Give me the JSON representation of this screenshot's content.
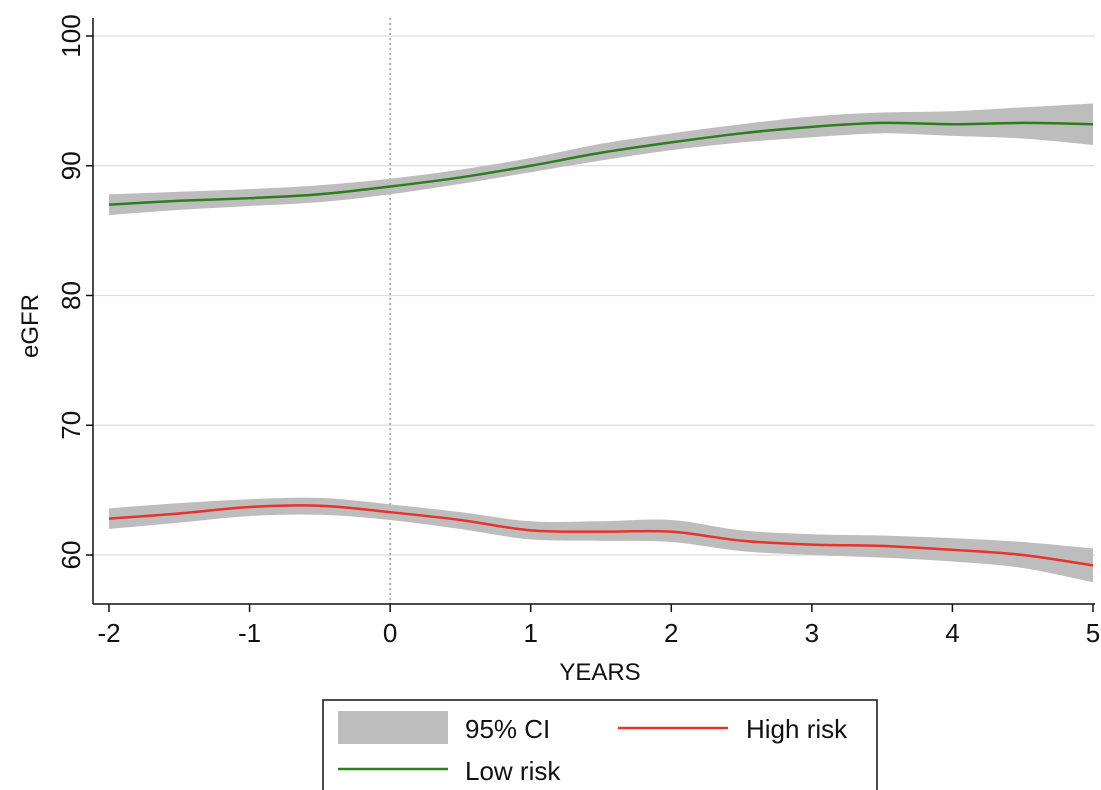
{
  "chart_data": {
    "type": "line",
    "xlabel": "YEARS",
    "ylabel": "eGFR",
    "xlim": [
      -2,
      5
    ],
    "ylim": [
      60,
      100
    ],
    "x_ticks": [
      "-2",
      "-1",
      "0",
      "1",
      "2",
      "3",
      "4",
      "5"
    ],
    "y_ticks": [
      "60",
      "70",
      "80",
      "90",
      "100"
    ],
    "reference_line_x": 0,
    "grid": "horizontal",
    "legend_position": "bottom",
    "legend": [
      "95% CI",
      "High risk",
      "Low risk"
    ],
    "x": [
      -2,
      -1.5,
      -1,
      -0.5,
      0,
      0.5,
      1,
      1.5,
      2,
      2.5,
      3,
      3.5,
      4,
      4.5,
      5
    ],
    "series": [
      {
        "name": "Low risk",
        "color": "#2e7d1f",
        "values": [
          87.0,
          87.3,
          87.5,
          87.8,
          88.4,
          89.1,
          90.0,
          91.0,
          91.8,
          92.5,
          93.0,
          93.3,
          93.2,
          93.3,
          93.2
        ],
        "ci_lower": [
          86.2,
          86.6,
          86.9,
          87.2,
          87.8,
          88.6,
          89.5,
          90.4,
          91.2,
          91.8,
          92.2,
          92.5,
          92.3,
          92.1,
          91.6
        ],
        "ci_upper": [
          87.8,
          88.0,
          88.2,
          88.5,
          89.0,
          89.7,
          90.6,
          91.7,
          92.5,
          93.2,
          93.8,
          94.1,
          94.2,
          94.5,
          94.8
        ]
      },
      {
        "name": "High risk",
        "color": "#e8322b",
        "values": [
          62.8,
          63.2,
          63.7,
          63.8,
          63.3,
          62.7,
          61.9,
          61.8,
          61.8,
          61.1,
          60.8,
          60.7,
          60.4,
          60.0,
          59.2
        ],
        "ci_lower": [
          62.0,
          62.5,
          63.0,
          63.1,
          62.7,
          62.0,
          61.2,
          61.1,
          61.0,
          60.3,
          60.0,
          59.8,
          59.5,
          59.0,
          57.9
        ],
        "ci_upper": [
          63.6,
          64.0,
          64.3,
          64.4,
          63.9,
          63.3,
          62.6,
          62.6,
          62.7,
          61.9,
          61.6,
          61.5,
          61.3,
          61.0,
          60.5
        ]
      }
    ],
    "ci_color": "#bdbdbd"
  }
}
